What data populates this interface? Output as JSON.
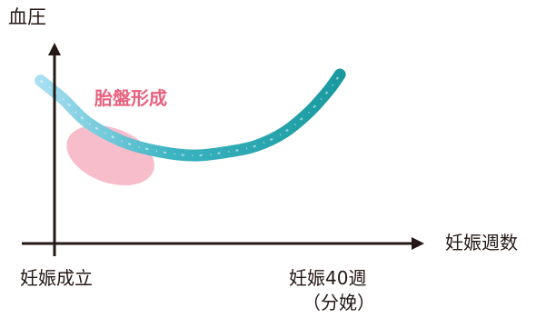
{
  "chart_data": {
    "type": "line",
    "ylabel": "血圧",
    "xlabel": "妊娠週数",
    "x_ticks": [
      {
        "label": "妊娠成立",
        "sub": ""
      },
      {
        "label": "妊娠40週",
        "sub": "（分娩）"
      }
    ],
    "x_range": [
      "妊娠成立",
      "妊娠40週"
    ],
    "series": [
      {
        "values": [
          {
            "t": -0.05,
            "bp": 0.95
          },
          {
            "t": 0.03,
            "bp": 0.8
          },
          {
            "t": 0.12,
            "bp": 0.6
          },
          {
            "t": 0.25,
            "bp": 0.44
          },
          {
            "t": 0.38,
            "bp": 0.36
          },
          {
            "t": 0.5,
            "bp": 0.33
          },
          {
            "t": 0.62,
            "bp": 0.36
          },
          {
            "t": 0.72,
            "bp": 0.41
          },
          {
            "t": 0.82,
            "bp": 0.52
          },
          {
            "t": 0.91,
            "bp": 0.69
          },
          {
            "t": 0.98,
            "bp": 0.87
          },
          {
            "t": 1.02,
            "bp": 1.0
          }
        ],
        "gradient": [
          "#a8dff2",
          "#1a9aa0"
        ]
      }
    ],
    "regions": [
      {
        "label": "胎盤形成",
        "t_from": 0.05,
        "t_to": 0.35,
        "color": "#f7b2c2"
      }
    ]
  }
}
